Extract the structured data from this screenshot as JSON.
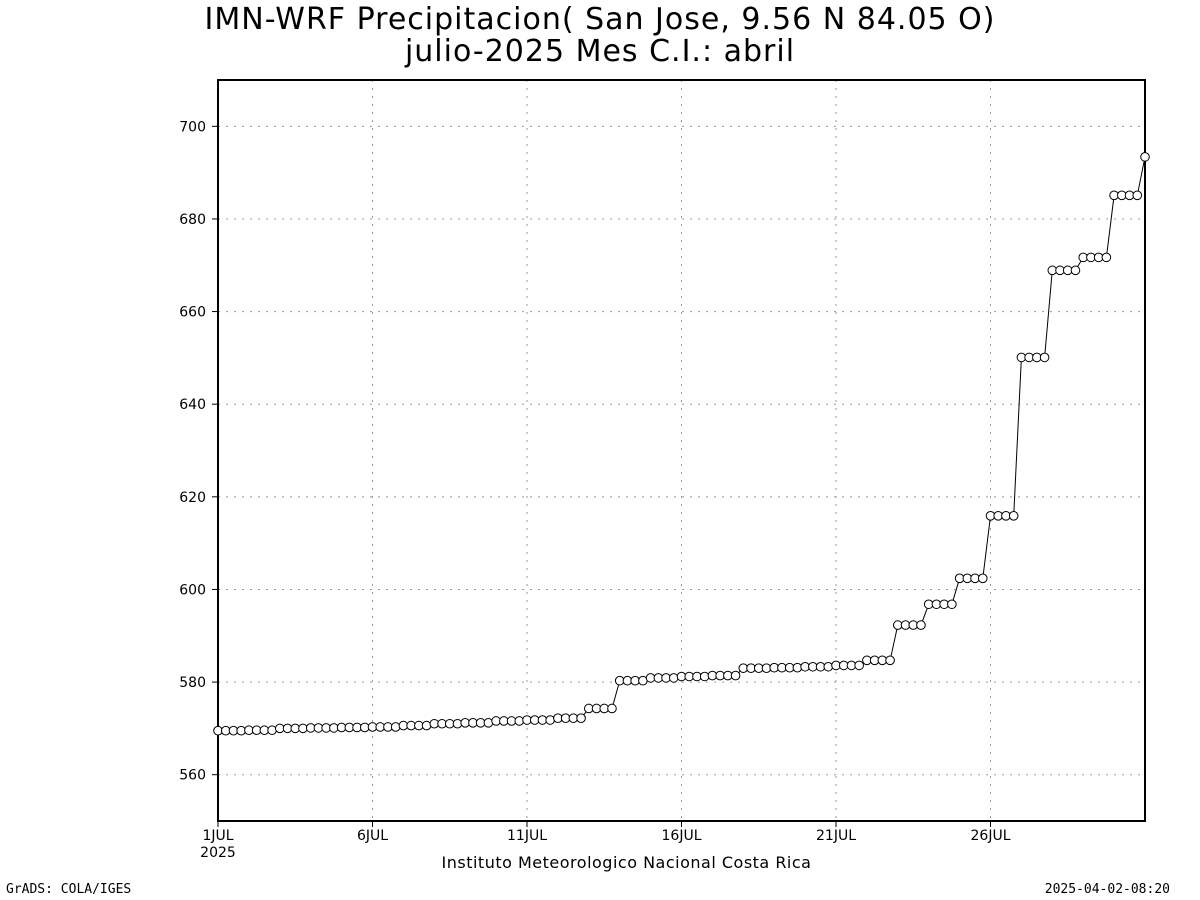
{
  "chart_data": {
    "type": "line",
    "title": "IMN-WRF  Precipitacion( San Jose, 9.56  N 84.05  O)",
    "subtitle": "julio-2025 Mes C.I.: abril",
    "xlabel": "Instituto Meteorologico Nacional Costa Rica",
    "ylabel": "",
    "xlim": [
      1,
      31
    ],
    "ylim": [
      550,
      710
    ],
    "grid": true,
    "x_ticks": [
      1,
      6,
      11,
      16,
      21,
      26
    ],
    "x_tick_labels": [
      "1JUL",
      "6JUL",
      "11JUL",
      "16JUL",
      "21JUL",
      "26JUL"
    ],
    "x_tick_sublabel": "2025",
    "y_ticks": [
      560,
      580,
      600,
      620,
      640,
      660,
      680,
      700
    ],
    "y_tick_labels": [
      "560",
      "580",
      "600",
      "620",
      "640",
      "660",
      "680",
      "700"
    ],
    "daily_values": [
      569.5,
      569.6,
      570.0,
      570.1,
      570.2,
      570.3,
      570.6,
      571.0,
      571.2,
      571.6,
      571.8,
      572.2,
      574.3,
      580.3,
      580.9,
      581.2,
      581.4,
      583.0,
      583.1,
      583.3,
      583.6,
      584.7,
      592.3,
      596.8,
      602.4,
      615.9,
      650.1,
      668.9,
      671.7,
      685.1,
      693.4
    ],
    "samples_per_day": 4,
    "series": [
      {
        "values": []
      }
    ]
  },
  "footer": {
    "left": "GrADS: COLA/IGES",
    "right": "2025-04-02-08:20"
  }
}
